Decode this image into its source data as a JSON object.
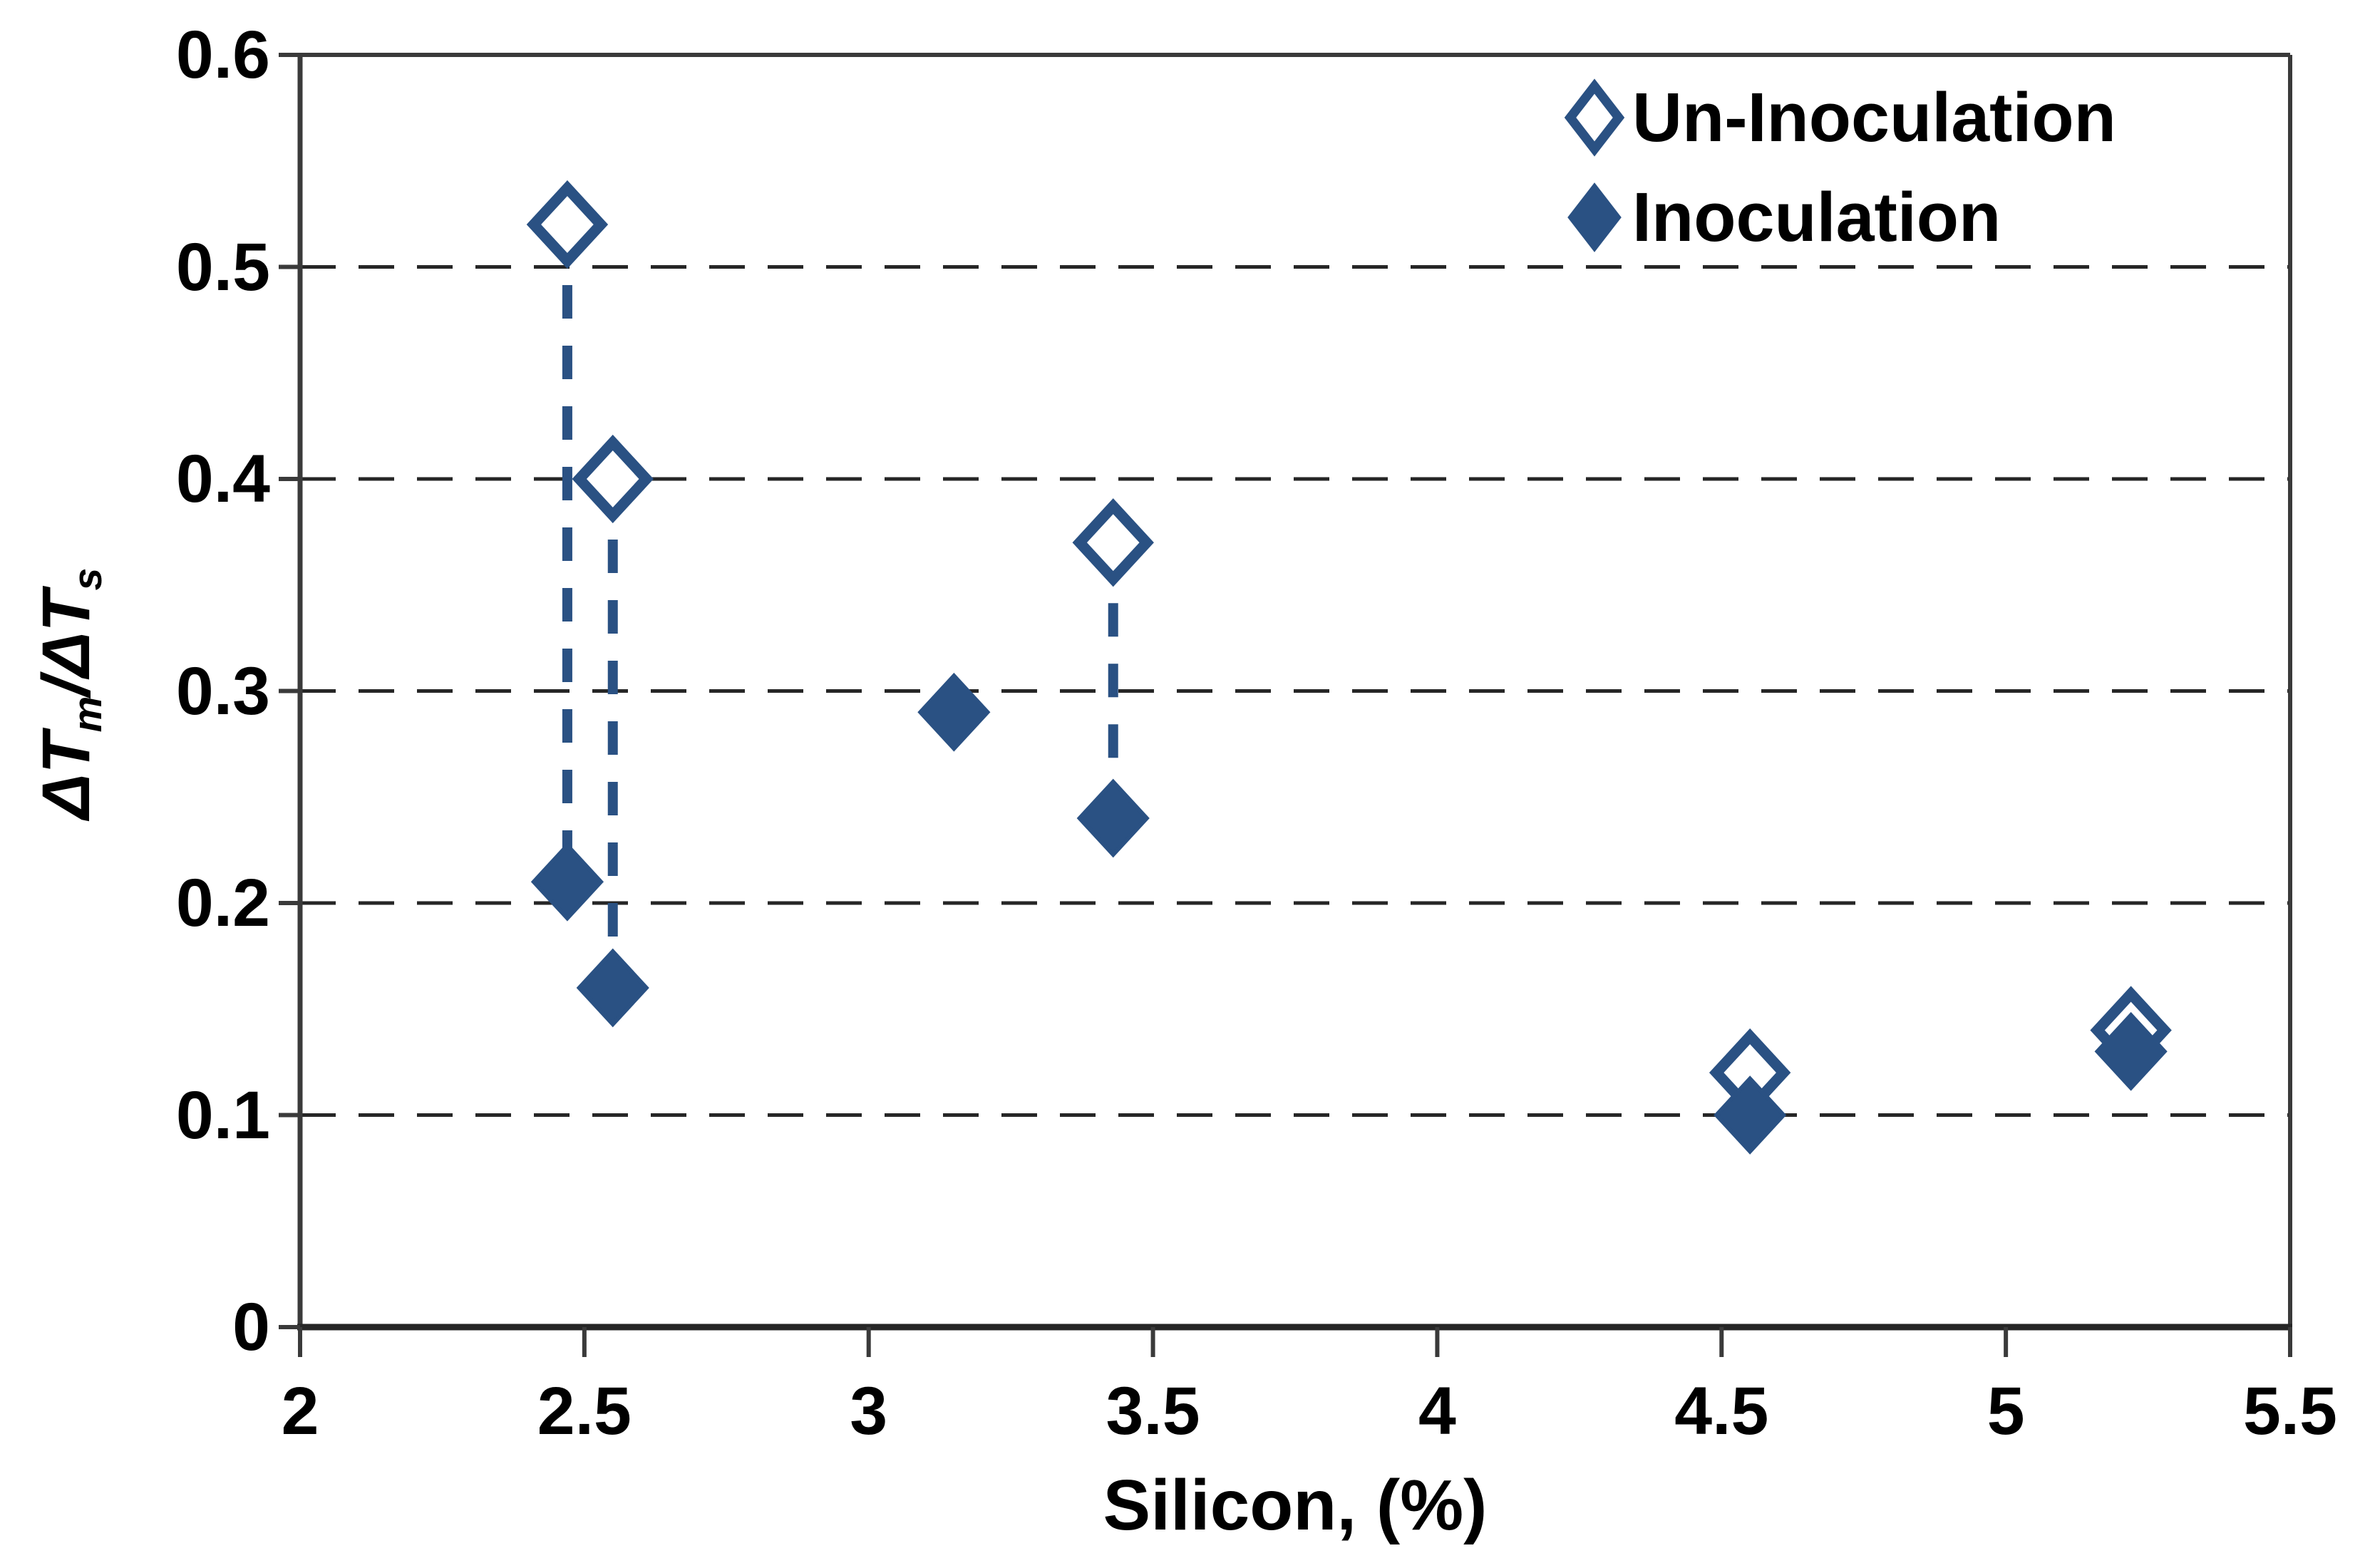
{
  "chart_data": {
    "type": "scatter",
    "title": "",
    "xlabel": "Silicon, (%)",
    "ylabel": "ΔTm/ΔTs",
    "ylabel_parts": [
      {
        "text": "ΔT",
        "sub": false
      },
      {
        "text": "m",
        "sub": true
      },
      {
        "text": "/ΔT",
        "sub": false
      },
      {
        "text": "s",
        "sub": true
      }
    ],
    "xlim": [
      2,
      5.5
    ],
    "ylim": [
      0,
      0.6
    ],
    "x_ticks": [
      {
        "value": 2,
        "label": "2"
      },
      {
        "value": 2.5,
        "label": "2.5"
      },
      {
        "value": 3,
        "label": "3"
      },
      {
        "value": 3.5,
        "label": "3.5"
      },
      {
        "value": 4,
        "label": "4"
      },
      {
        "value": 4.5,
        "label": "4.5"
      },
      {
        "value": 5,
        "label": "5"
      },
      {
        "value": 5.5,
        "label": "5.5"
      }
    ],
    "y_ticks": [
      {
        "value": 0,
        "label": "0"
      },
      {
        "value": 0.1,
        "label": "0.1"
      },
      {
        "value": 0.2,
        "label": "0.2"
      },
      {
        "value": 0.3,
        "label": "0.3"
      },
      {
        "value": 0.4,
        "label": "0.4"
      },
      {
        "value": 0.5,
        "label": "0.5"
      },
      {
        "value": 0.6,
        "label": "0.6"
      }
    ],
    "grid": "horizontal-dashed",
    "legend": {
      "position": "top-right-inside",
      "items": [
        {
          "label": "Un-Inoculation",
          "marker": "open-diamond"
        },
        {
          "label": "Inoculation",
          "marker": "filled-diamond"
        }
      ]
    },
    "series": [
      {
        "name": "Un-Inoculation",
        "marker": "open-diamond",
        "points": [
          {
            "x": 2.47,
            "y": 0.52
          },
          {
            "x": 2.55,
            "y": 0.4
          },
          {
            "x": 3.43,
            "y": 0.37
          },
          {
            "x": 4.55,
            "y": 0.12
          },
          {
            "x": 5.22,
            "y": 0.14
          }
        ]
      },
      {
        "name": "Inoculation",
        "marker": "filled-diamond",
        "points": [
          {
            "x": 2.47,
            "y": 0.21
          },
          {
            "x": 2.55,
            "y": 0.16
          },
          {
            "x": 3.15,
            "y": 0.29
          },
          {
            "x": 3.43,
            "y": 0.24
          },
          {
            "x": 4.55,
            "y": 0.1
          },
          {
            "x": 5.22,
            "y": 0.13
          }
        ]
      }
    ],
    "connectors": [
      {
        "x": 2.47,
        "y_top": 0.52,
        "y_bottom": 0.21
      },
      {
        "x": 2.55,
        "y_top": 0.4,
        "y_bottom": 0.16
      },
      {
        "x": 3.43,
        "y_top": 0.37,
        "y_bottom": 0.24
      }
    ],
    "colors": {
      "marker_blue": "#2A5183",
      "connector_blue": "#2A5183",
      "gridline": "#262626",
      "axis": "#3A3A3A",
      "text": "#000000",
      "background": "#FFFFFF"
    }
  }
}
